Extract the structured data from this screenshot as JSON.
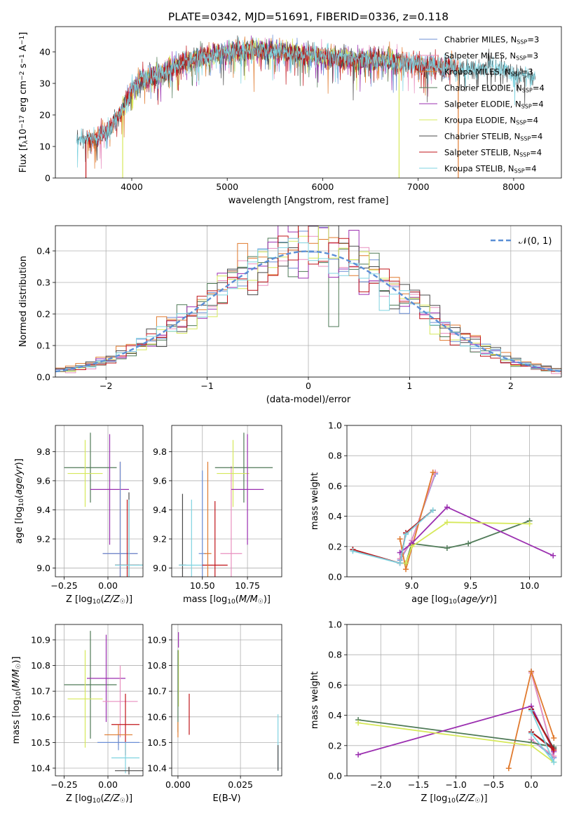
{
  "colors": {
    "Chabrier MILES": "#6b8fd6",
    "Salpeter MILES": "#e88fbf",
    "Kroupa MILES": "#e07a2e",
    "Chabrier ELODIE": "#4f7a57",
    "Salpeter ELODIE": "#9b2fb0",
    "Kroupa ELODIE": "#d6e85a",
    "Chabrier STELIB": "#4a4a4a",
    "Salpeter STELIB": "#c0151a",
    "Kroupa STELIB": "#7fd3e0",
    "normal": "#5b8fd6",
    "grid": "#b0b0b0"
  },
  "chart_data": [
    {
      "id": "spectrum",
      "type": "line",
      "title": "PLATE=0342, MJD=51691, FIBERID=0336, z=0.118",
      "xlabel": "wavelength [Angstrom, rest frame]",
      "ylabel": "Flux [f_λ10^-17 erg cm^-2 s^-1 A^-1]",
      "xlim": [
        3200,
        8500
      ],
      "ylim": [
        0,
        48
      ],
      "xticks": [
        4000,
        5000,
        6000,
        7000,
        8000
      ],
      "yticks": [
        0,
        10,
        20,
        30,
        40
      ],
      "grid": false,
      "legend_position": "top-right",
      "legend": [
        {
          "label": "Chabrier MILES, N_SSP=3",
          "series": "Chabrier MILES"
        },
        {
          "label": "Salpeter MILES, N_SSP=3",
          "series": "Salpeter MILES"
        },
        {
          "label": "Kroupa MILES, N_SSP=3",
          "series": "Kroupa MILES"
        },
        {
          "label": "Chabrier ELODIE, N_SSP=4",
          "series": "Chabrier ELODIE"
        },
        {
          "label": "Salpeter ELODIE, N_SSP=4",
          "series": "Salpeter ELODIE"
        },
        {
          "label": "Kroupa ELODIE, N_SSP=4",
          "series": "Kroupa ELODIE"
        },
        {
          "label": "Chabrier STELIB, N_SSP=4",
          "series": "Chabrier STELIB"
        },
        {
          "label": "Salpeter STELIB, N_SSP=4",
          "series": "Salpeter STELIB"
        },
        {
          "label": "Kroupa STELIB, N_SSP=4",
          "series": "Kroupa STELIB"
        }
      ],
      "continuum": {
        "x": [
          3420,
          3600,
          3700,
          3800,
          3900,
          3950,
          4000,
          4100,
          4300,
          4500,
          4700,
          5000,
          5300,
          5600,
          5900,
          6200,
          6500,
          6800,
          7000,
          7200,
          7400,
          7600,
          7800,
          8000,
          8230
        ],
        "y": [
          12,
          12.5,
          14,
          17,
          22,
          25,
          28,
          31,
          33,
          36,
          38,
          40,
          40.5,
          40,
          39,
          38,
          37.5,
          37,
          36,
          35.5,
          35,
          34.5,
          35,
          33,
          32
        ]
      },
      "series": [
        {
          "name": "Chabrier MILES",
          "xrange": [
            3540,
            7400
          ]
        },
        {
          "name": "Salpeter MILES",
          "xrange": [
            3540,
            7400
          ]
        },
        {
          "name": "Kroupa MILES",
          "xrange": [
            3520,
            7420
          ]
        },
        {
          "name": "Chabrier ELODIE",
          "xrange": [
            3900,
            6800
          ]
        },
        {
          "name": "Salpeter ELODIE",
          "xrange": [
            3900,
            6800
          ]
        },
        {
          "name": "Kroupa ELODIE",
          "xrange": [
            3900,
            6800
          ]
        },
        {
          "name": "Chabrier STELIB",
          "xrange": [
            3420,
            8230
          ]
        },
        {
          "name": "Salpeter STELIB",
          "xrange": [
            3520,
            7420
          ]
        },
        {
          "name": "Kroupa STELIB",
          "xrange": [
            3420,
            8230
          ]
        }
      ],
      "drops": [
        {
          "x": 3520,
          "from": 12,
          "color": "Salpeter STELIB"
        },
        {
          "x": 3905,
          "from": 22,
          "color": "Kroupa ELODIE"
        },
        {
          "x": 6800,
          "from": 38,
          "color": "Kroupa ELODIE"
        },
        {
          "x": 7420,
          "from": 35,
          "color": "Kroupa MILES"
        }
      ]
    },
    {
      "id": "residuals",
      "type": "line",
      "xlabel": "(data-model)/error",
      "ylabel": "Normed distribution",
      "xlim": [
        -2.5,
        2.5
      ],
      "ylim": [
        0,
        0.48
      ],
      "xticks": [
        -2,
        -1,
        0,
        1,
        2
      ],
      "xticklabels": [
        "−2",
        "−1",
        "0",
        "1",
        "2"
      ],
      "yticks": [
        0.0,
        0.1,
        0.2,
        0.3,
        0.4
      ],
      "yticklabels": [
        "0.0",
        "0.1",
        "0.2",
        "0.3",
        "0.4"
      ],
      "grid": true,
      "legend_position": "top-right",
      "legend_label": "𝒩(0, 1)",
      "bin_width": 0.1,
      "hist_offsets": [
        0.02,
        -0.03,
        0.035,
        -0.02,
        0.01,
        -0.015,
        0.03,
        -0.01,
        0.0
      ],
      "normal_curve": {
        "mean": 0,
        "sigma": 1
      }
    },
    {
      "id": "err-z-age",
      "type": "scatter",
      "xlabel": "Z [log10(Z/Z☉)]",
      "ylabel": "age [log10(age/yr)]",
      "xlim": [
        -0.3,
        0.2
      ],
      "ylim": [
        8.94,
        9.98
      ],
      "xticks": [
        -0.25,
        0.0
      ],
      "xticklabels": [
        "−0.25",
        "0.00"
      ],
      "yticks": [
        9.0,
        9.2,
        9.4,
        9.6,
        9.8
      ],
      "yticklabels": [
        "9.0",
        "9.2",
        "9.4",
        "9.6",
        "9.8"
      ],
      "grid": true,
      "points": [
        {
          "series": "Chabrier ELODIE",
          "x": -0.1,
          "xerr": 0.15,
          "y": 9.69,
          "yerr": 0.24
        },
        {
          "series": "Kroupa ELODIE",
          "x": -0.13,
          "xerr": 0.1,
          "y": 9.65,
          "yerr": 0.23
        },
        {
          "series": "Salpeter ELODIE",
          "x": 0.01,
          "xerr": 0.11,
          "y": 9.54,
          "yerr": 0.38
        },
        {
          "series": "Kroupa MILES",
          "x": 0.07,
          "xerr": 0.1,
          "y": 9.1,
          "yerr": 0.63
        },
        {
          "series": "Salpeter MILES",
          "x": 0.07,
          "xerr": 0.1,
          "y": 9.1,
          "yerr": 0.63
        },
        {
          "series": "Chabrier MILES",
          "x": 0.07,
          "xerr": 0.1,
          "y": 9.1,
          "yerr": 0.63
        },
        {
          "series": "Chabrier STELIB",
          "x": 0.12,
          "xerr": 0.08,
          "y": 9.02,
          "yerr": 0.5
        },
        {
          "series": "Salpeter STELIB",
          "x": 0.11,
          "xerr": 0.07,
          "y": 9.02,
          "yerr": 0.45
        },
        {
          "series": "Kroupa STELIB",
          "x": 0.12,
          "xerr": 0.08,
          "y": 9.02,
          "yerr": 0.45
        }
      ]
    },
    {
      "id": "err-mass-age",
      "type": "scatter",
      "xlabel": "mass [log10(M/M☉)]",
      "ylabel": "",
      "xlim": [
        10.33,
        10.94
      ],
      "ylim": [
        8.94,
        9.98
      ],
      "xticks": [
        10.5,
        10.75
      ],
      "xticklabels": [
        "10.50",
        "10.75"
      ],
      "yticks": [
        9.0,
        9.2,
        9.4,
        9.6,
        9.8
      ],
      "yticklabels": [
        "9.0",
        "9.2",
        "9.4",
        "9.6",
        "9.8"
      ],
      "grid": true,
      "points": [
        {
          "series": "Chabrier STELIB",
          "x": 10.39,
          "xerr": 0.02,
          "y": 9.02,
          "yerr": 0.49
        },
        {
          "series": "Kroupa STELIB",
          "x": 10.44,
          "xerr": 0.07,
          "y": 9.02,
          "yerr": 0.45
        },
        {
          "series": "Chabrier MILES",
          "x": 10.5,
          "xerr": 0.02,
          "y": 9.1,
          "yerr": 0.57
        },
        {
          "series": "Salpeter STELIB",
          "x": 10.57,
          "xerr": 0.07,
          "y": 9.02,
          "yerr": 0.44
        },
        {
          "series": "Kroupa MILES",
          "x": 10.53,
          "xerr": 0.02,
          "y": 9.1,
          "yerr": 0.63
        },
        {
          "series": "Salpeter MILES",
          "x": 10.66,
          "xerr": 0.06,
          "y": 9.1,
          "yerr": 0.6
        },
        {
          "series": "Chabrier ELODIE",
          "x": 10.73,
          "xerr": 0.16,
          "y": 9.69,
          "yerr": 0.24
        },
        {
          "series": "Kroupa ELODIE",
          "x": 10.67,
          "xerr": 0.09,
          "y": 9.65,
          "yerr": 0.23
        },
        {
          "series": "Salpeter ELODIE",
          "x": 10.75,
          "xerr": 0.09,
          "y": 9.54,
          "yerr": 0.38
        }
      ]
    },
    {
      "id": "weight-age",
      "type": "line",
      "xlabel": "age [log10(age/yr)]",
      "ylabel": "mass weight",
      "xlim": [
        8.45,
        10.27
      ],
      "ylim": [
        0,
        1
      ],
      "xticks": [
        9.0,
        9.5,
        10.0
      ],
      "xticklabels": [
        "9.0",
        "9.5",
        "10.0"
      ],
      "yticks": [
        0.0,
        0.2,
        0.4,
        0.6,
        0.8,
        1.0
      ],
      "yticklabels": [
        "0.0",
        "0.2",
        "0.4",
        "0.6",
        "0.8",
        "1.0"
      ],
      "grid": true,
      "series": [
        {
          "name": "Chabrier MILES",
          "x": [
            8.9,
            9.0,
            9.2
          ],
          "y": [
            0.11,
            0.24,
            0.68
          ]
        },
        {
          "name": "Salpeter MILES",
          "x": [
            8.9,
            9.0,
            9.2
          ],
          "y": [
            0.12,
            0.24,
            0.69
          ]
        },
        {
          "name": "Kroupa MILES",
          "x": [
            8.9,
            8.95,
            9.18
          ],
          "y": [
            0.25,
            0.05,
            0.69
          ]
        },
        {
          "name": "Chabrier ELODIE",
          "x": [
            8.95,
            9.0,
            9.3,
            9.48,
            10.0
          ],
          "y": [
            0.09,
            0.22,
            0.19,
            0.22,
            0.37
          ]
        },
        {
          "name": "Salpeter ELODIE",
          "x": [
            8.9,
            9.0,
            9.3,
            10.2
          ],
          "y": [
            0.16,
            0.22,
            0.46,
            0.14
          ]
        },
        {
          "name": "Kroupa ELODIE",
          "x": [
            8.95,
            9.0,
            9.3,
            10.0
          ],
          "y": [
            0.09,
            0.2,
            0.36,
            0.35
          ]
        },
        {
          "name": "Chabrier STELIB",
          "x": [
            8.5,
            8.9,
            8.95,
            9.18
          ],
          "y": [
            0.18,
            0.09,
            0.29,
            0.44
          ]
        },
        {
          "name": "Salpeter STELIB",
          "x": [
            8.5,
            8.9,
            8.95,
            9.18
          ],
          "y": [
            0.18,
            0.09,
            0.29,
            0.44
          ]
        },
        {
          "name": "Kroupa STELIB",
          "x": [
            8.5,
            8.9,
            8.95,
            9.18
          ],
          "y": [
            0.17,
            0.09,
            0.28,
            0.44
          ]
        }
      ]
    },
    {
      "id": "err-z-mass",
      "type": "scatter",
      "xlabel": "Z [log10(Z/Z☉)]",
      "ylabel": "mass [log10(M/M☉)]",
      "xlim": [
        -0.3,
        0.2
      ],
      "ylim": [
        10.37,
        10.96
      ],
      "xticks": [
        -0.25,
        0.0
      ],
      "xticklabels": [
        "−0.25",
        "0.00"
      ],
      "yticks": [
        10.4,
        10.5,
        10.6,
        10.7,
        10.8,
        10.9
      ],
      "yticklabels": [
        "10.4",
        "10.5",
        "10.6",
        "10.7",
        "10.8",
        "10.9"
      ],
      "grid": true,
      "points": [
        {
          "series": "Chabrier ELODIE",
          "x": -0.1,
          "xerr": 0.15,
          "y": 10.725,
          "yerr": 0.21
        },
        {
          "series": "Kroupa ELODIE",
          "x": -0.13,
          "xerr": 0.1,
          "y": 10.67,
          "yerr": 0.19
        },
        {
          "series": "Salpeter ELODIE",
          "x": -0.01,
          "xerr": 0.11,
          "y": 10.75,
          "yerr": 0.17
        },
        {
          "series": "Salpeter MILES",
          "x": 0.07,
          "xerr": 0.1,
          "y": 10.66,
          "yerr": 0.14
        },
        {
          "series": "Salpeter STELIB",
          "x": 0.1,
          "xerr": 0.08,
          "y": 10.57,
          "yerr": 0.12
        },
        {
          "series": "Kroupa MILES",
          "x": 0.06,
          "xerr": 0.08,
          "y": 10.53,
          "yerr": 0.04
        },
        {
          "series": "Chabrier MILES",
          "x": 0.06,
          "xerr": 0.12,
          "y": 10.5,
          "yerr": 0.03
        },
        {
          "series": "Kroupa STELIB",
          "x": 0.1,
          "xerr": 0.08,
          "y": 10.44,
          "yerr": 0.06
        },
        {
          "series": "Chabrier STELIB",
          "x": 0.12,
          "xerr": 0.08,
          "y": 10.39,
          "yerr": 0.015
        }
      ]
    },
    {
      "id": "err-ebv-mass",
      "type": "scatter",
      "xlabel": "E(B-V)",
      "ylabel": "",
      "xlim": [
        -0.0025,
        0.0415
      ],
      "ylim": [
        10.37,
        10.96
      ],
      "xticks": [
        0.0,
        0.025
      ],
      "xticklabels": [
        "0.000",
        "0.025"
      ],
      "yticks": [
        10.4,
        10.5,
        10.6,
        10.7,
        10.8,
        10.9
      ],
      "yticklabels": [
        "10.4",
        "10.5",
        "10.6",
        "10.7",
        "10.8",
        "10.9"
      ],
      "grid": true,
      "points": [
        {
          "series": "Salpeter ELODIE",
          "x": 0.0002,
          "xerr": 0,
          "y": 10.9,
          "yerr": 0.03
        },
        {
          "series": "Kroupa ELODIE",
          "x": 0.0002,
          "xerr": 0,
          "y": 10.75,
          "yerr": 0.11
        },
        {
          "series": "Chabrier ELODIE",
          "x": 0.0,
          "xerr": 0,
          "y": 10.7,
          "yerr": 0.16
        },
        {
          "series": "Kroupa MILES",
          "x": 0.0,
          "xerr": 0,
          "y": 10.55,
          "yerr": 0.03
        },
        {
          "series": "Salpeter STELIB",
          "x": 0.0045,
          "xerr": 0,
          "y": 10.61,
          "yerr": 0.08
        },
        {
          "series": "Kroupa STELIB",
          "x": 0.04,
          "xerr": 0,
          "y": 10.5,
          "yerr": 0.11
        },
        {
          "series": "Chabrier STELIB",
          "x": 0.04,
          "xerr": 0,
          "y": 10.44,
          "yerr": 0.05
        }
      ]
    },
    {
      "id": "weight-z",
      "type": "line",
      "xlabel": "Z [log10(Z/Z☉)]",
      "ylabel": "mass weight",
      "xlim": [
        -2.45,
        0.4
      ],
      "ylim": [
        0,
        1
      ],
      "xticks": [
        -2.0,
        -1.5,
        -1.0,
        -0.5,
        0.0
      ],
      "xticklabels": [
        "−2.0",
        "−1.5",
        "−1.0",
        "−0.5",
        "0.0"
      ],
      "yticks": [
        0.0,
        0.2,
        0.4,
        0.6,
        0.8,
        1.0
      ],
      "yticklabels": [
        "0.0",
        "0.2",
        "0.4",
        "0.6",
        "0.8",
        "1.0"
      ],
      "grid": true,
      "series": [
        {
          "name": "Chabrier MILES",
          "x": [
            0.0,
            0.3,
            0.0
          ],
          "y": [
            0.69,
            0.12,
            0.24
          ]
        },
        {
          "name": "Salpeter MILES",
          "x": [
            0.0,
            0.3,
            0.0
          ],
          "y": [
            0.68,
            0.13,
            0.24
          ]
        },
        {
          "name": "Kroupa MILES",
          "x": [
            -0.3,
            0.0,
            0.3
          ],
          "y": [
            0.05,
            0.69,
            0.25
          ]
        },
        {
          "name": "Chabrier ELODIE",
          "x": [
            -2.3,
            0.0,
            0.3
          ],
          "y": [
            0.37,
            0.22,
            0.19
          ]
        },
        {
          "name": "Salpeter ELODIE",
          "x": [
            -2.3,
            0.0,
            0.3
          ],
          "y": [
            0.14,
            0.46,
            0.16
          ]
        },
        {
          "name": "Kroupa ELODIE",
          "x": [
            -2.3,
            0.0,
            0.3
          ],
          "y": [
            0.35,
            0.2,
            0.09
          ]
        },
        {
          "name": "Chabrier STELIB",
          "x": [
            0.0,
            0.3,
            0.0
          ],
          "y": [
            0.44,
            0.18,
            0.29
          ]
        },
        {
          "name": "Salpeter STELIB",
          "x": [
            0.0,
            0.3,
            0.0
          ],
          "y": [
            0.44,
            0.17,
            0.29
          ]
        },
        {
          "name": "Kroupa STELIB",
          "x": [
            0.0,
            0.3,
            0.0
          ],
          "y": [
            0.43,
            0.09,
            0.28
          ]
        }
      ]
    }
  ]
}
